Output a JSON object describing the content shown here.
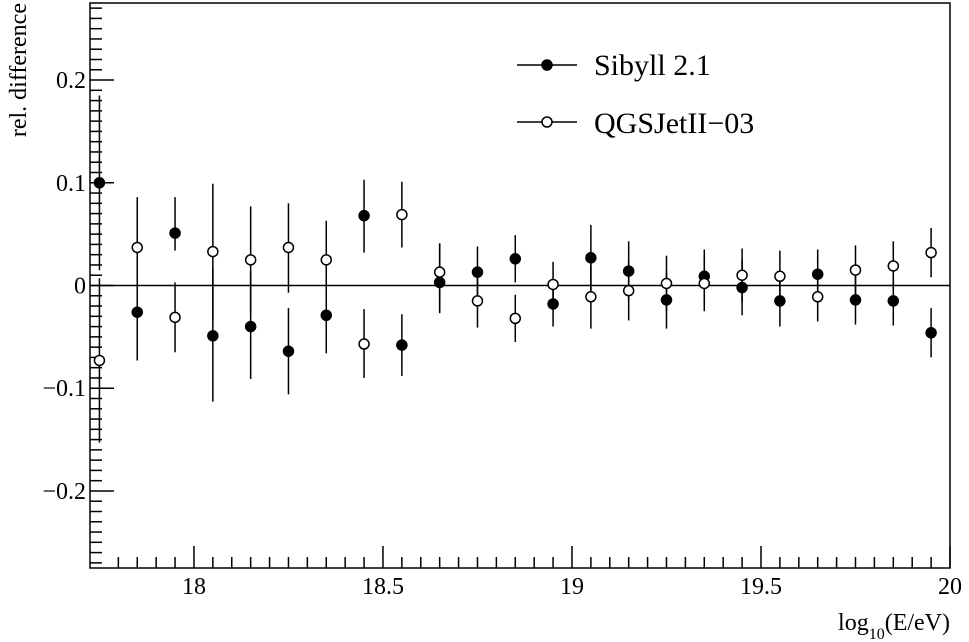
{
  "chart_data": {
    "type": "scatter",
    "xlabel_main": "log",
    "xlabel_sub": "10",
    "xlabel_rest": "(E/eV)",
    "ylabel": "rel. difference",
    "xlim": [
      17.725,
      20.0
    ],
    "ylim": [
      -0.275,
      0.275
    ],
    "x_ticks": [
      18,
      18.5,
      19,
      19.5,
      20
    ],
    "x_tick_labels": [
      "18",
      "18.5",
      "19",
      "19.5",
      "20"
    ],
    "y_ticks": [
      -0.2,
      -0.1,
      0,
      0.1,
      0.2
    ],
    "y_tick_labels": [
      "−0.2",
      "−0.1",
      "0",
      "0.1",
      "0.2"
    ],
    "zero_line": true,
    "grid": false,
    "legend_position": "top-right",
    "series": [
      {
        "name": "Sibyll 2.1",
        "marker": "filled-circle",
        "color": "#000000",
        "points": [
          {
            "x": 17.75,
            "y": 0.1,
            "lo": -0.085,
            "hi": 0.085
          },
          {
            "x": 17.85,
            "y": -0.026,
            "lo": -0.047,
            "hi": 0.047
          },
          {
            "x": 17.95,
            "y": 0.051,
            "lo": -0.017,
            "hi": 0.035
          },
          {
            "x": 18.05,
            "y": -0.049,
            "lo": -0.064,
            "hi": 0.066
          },
          {
            "x": 18.15,
            "y": -0.04,
            "lo": -0.051,
            "hi": 0.053
          },
          {
            "x": 18.25,
            "y": -0.064,
            "lo": -0.042,
            "hi": 0.042
          },
          {
            "x": 18.35,
            "y": -0.029,
            "lo": -0.037,
            "hi": 0.037
          },
          {
            "x": 18.45,
            "y": 0.068,
            "lo": -0.036,
            "hi": 0.035
          },
          {
            "x": 18.55,
            "y": -0.058,
            "lo": -0.03,
            "hi": 0.03
          },
          {
            "x": 18.65,
            "y": 0.003,
            "lo": -0.028,
            "hi": 0.038
          },
          {
            "x": 18.75,
            "y": 0.013,
            "lo": -0.025,
            "hi": 0.025
          },
          {
            "x": 18.85,
            "y": 0.026,
            "lo": -0.023,
            "hi": 0.023
          },
          {
            "x": 18.95,
            "y": -0.018,
            "lo": -0.022,
            "hi": 0.022
          },
          {
            "x": 19.05,
            "y": 0.027,
            "lo": -0.032,
            "hi": 0.032
          },
          {
            "x": 19.15,
            "y": 0.014,
            "lo": -0.029,
            "hi": 0.029
          },
          {
            "x": 19.25,
            "y": -0.014,
            "lo": -0.028,
            "hi": 0.028
          },
          {
            "x": 19.35,
            "y": 0.009,
            "lo": -0.026,
            "hi": 0.026
          },
          {
            "x": 19.45,
            "y": -0.002,
            "lo": -0.027,
            "hi": 0.027
          },
          {
            "x": 19.55,
            "y": -0.015,
            "lo": -0.025,
            "hi": 0.025
          },
          {
            "x": 19.65,
            "y": 0.011,
            "lo": -0.024,
            "hi": 0.024
          },
          {
            "x": 19.75,
            "y": -0.014,
            "lo": -0.024,
            "hi": 0.024
          },
          {
            "x": 19.85,
            "y": -0.015,
            "lo": -0.024,
            "hi": 0.024
          },
          {
            "x": 19.95,
            "y": -0.046,
            "lo": -0.024,
            "hi": 0.024
          }
        ]
      },
      {
        "name": "QGSJetII−03",
        "marker": "open-circle",
        "color": "#000000",
        "points": [
          {
            "x": 17.75,
            "y": -0.073,
            "lo": -0.08,
            "hi": 0.08
          },
          {
            "x": 17.85,
            "y": 0.037,
            "lo": -0.05,
            "hi": 0.049
          },
          {
            "x": 17.95,
            "y": -0.031,
            "lo": -0.034,
            "hi": 0.034
          },
          {
            "x": 18.05,
            "y": 0.033,
            "lo": -0.066,
            "hi": 0.066
          },
          {
            "x": 18.15,
            "y": 0.025,
            "lo": -0.052,
            "hi": 0.052
          },
          {
            "x": 18.25,
            "y": 0.037,
            "lo": -0.044,
            "hi": 0.043
          },
          {
            "x": 18.35,
            "y": 0.025,
            "lo": -0.038,
            "hi": 0.038
          },
          {
            "x": 18.45,
            "y": -0.057,
            "lo": -0.033,
            "hi": 0.034
          },
          {
            "x": 18.55,
            "y": 0.069,
            "lo": -0.032,
            "hi": 0.032
          },
          {
            "x": 18.65,
            "y": 0.013,
            "lo": -0.04,
            "hi": 0.028
          },
          {
            "x": 18.75,
            "y": -0.015,
            "lo": -0.026,
            "hi": 0.026
          },
          {
            "x": 18.85,
            "y": -0.032,
            "lo": -0.023,
            "hi": 0.023
          },
          {
            "x": 18.95,
            "y": 0.001,
            "lo": -0.022,
            "hi": 0.022
          },
          {
            "x": 19.05,
            "y": -0.011,
            "lo": -0.031,
            "hi": 0.031
          },
          {
            "x": 19.15,
            "y": -0.005,
            "lo": -0.029,
            "hi": 0.029
          },
          {
            "x": 19.25,
            "y": 0.002,
            "lo": -0.027,
            "hi": 0.027
          },
          {
            "x": 19.35,
            "y": 0.002,
            "lo": -0.027,
            "hi": 0.027
          },
          {
            "x": 19.45,
            "y": 0.01,
            "lo": -0.026,
            "hi": 0.026
          },
          {
            "x": 19.55,
            "y": 0.009,
            "lo": -0.025,
            "hi": 0.025
          },
          {
            "x": 19.65,
            "y": -0.011,
            "lo": -0.024,
            "hi": 0.024
          },
          {
            "x": 19.75,
            "y": 0.015,
            "lo": -0.024,
            "hi": 0.024
          },
          {
            "x": 19.85,
            "y": 0.019,
            "lo": -0.024,
            "hi": 0.024
          },
          {
            "x": 19.95,
            "y": 0.032,
            "lo": -0.024,
            "hi": 0.024
          }
        ]
      }
    ]
  }
}
